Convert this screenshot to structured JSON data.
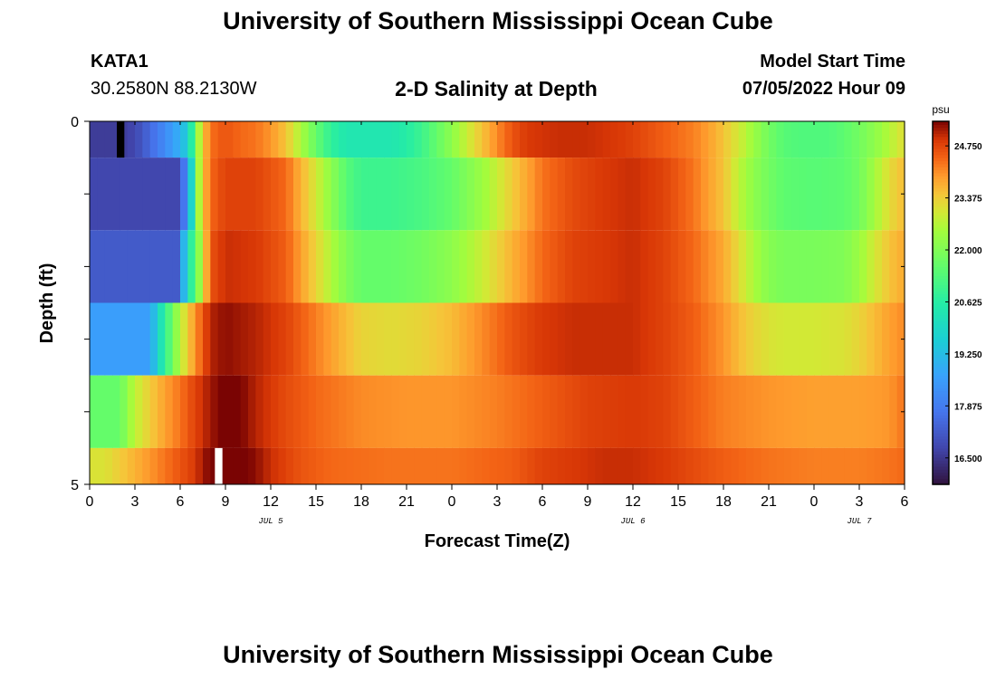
{
  "header": {
    "title": "University of Southern Mississippi Ocean Cube",
    "station_id": "KATA1",
    "coordinates": "30.2580N  88.2130W",
    "plot_title": "2-D Salinity at Depth",
    "model_start_label": "Model Start Time",
    "model_start_value": "07/05/2022 Hour 09"
  },
  "footer": {
    "title": "University of Southern Mississippi Ocean Cube"
  },
  "colors": {
    "background": "#ffffff",
    "missing_black": "#000000",
    "missing_white": "#ffffff"
  },
  "chart_data": {
    "type": "heatmap",
    "title": "2-D Salinity at Depth",
    "xlabel": "Forecast Time(Z)",
    "ylabel": "Depth (ft)",
    "x_range": [
      0,
      54
    ],
    "y_range": [
      0,
      5
    ],
    "x_tick_values": [
      0,
      3,
      6,
      9,
      12,
      15,
      18,
      21,
      24,
      27,
      30,
      33,
      36,
      39,
      42,
      45,
      48,
      51,
      54
    ],
    "x_tick_labels": [
      "0",
      "3",
      "6",
      "9",
      "12",
      "15",
      "18",
      "21",
      "0",
      "3",
      "6",
      "9",
      "12",
      "15",
      "18",
      "21",
      "0",
      "3",
      "6"
    ],
    "y_tick_values": [
      0,
      5
    ],
    "y_tick_labels": [
      "0",
      "5"
    ],
    "date_labels": [
      {
        "hour": 12,
        "label": "JUL 5"
      },
      {
        "hour": 36,
        "label": "JUL 6"
      },
      {
        "hour": 51,
        "label": "JUL 7"
      }
    ],
    "colorbar": {
      "unit": "psu",
      "min": 15.8,
      "max": 25.4,
      "ticks": [
        16.5,
        17.875,
        19.25,
        20.625,
        22.0,
        23.375,
        24.75
      ],
      "tick_labels": [
        "16.500",
        "17.875",
        "19.250",
        "20.625",
        "22.000",
        "23.375",
        "24.750"
      ]
    },
    "layer_depths": [
      [
        0,
        0.5
      ],
      [
        0.5,
        1.5
      ],
      [
        1.5,
        2.5
      ],
      [
        2.5,
        3.5
      ],
      [
        3.5,
        4.5
      ],
      [
        4.5,
        5.0
      ]
    ],
    "column_step_hours": 0.5,
    "missing_cells": [
      {
        "layer": 0,
        "hour_start": 1.8,
        "hour_end": 2.3,
        "color": "black"
      },
      {
        "layer": 5,
        "hour_start": 8.3,
        "hour_end": 8.8,
        "color": "white"
      }
    ],
    "layer_profiles": [
      {
        "name": "0-0.5 ft",
        "hours": [
          0,
          1,
          2,
          3,
          4,
          5,
          6,
          6.6,
          7,
          7.6,
          8,
          8.5,
          9,
          10,
          11,
          12,
          13,
          14,
          15,
          16,
          17,
          18,
          20,
          21,
          22,
          23,
          24,
          25,
          26,
          27,
          28,
          29,
          31,
          33,
          35,
          36,
          38,
          40,
          41,
          42,
          43,
          44,
          45,
          46,
          47,
          48,
          49,
          50,
          51,
          52,
          53,
          54
        ],
        "values": [
          16.6,
          16.6,
          16.6,
          16.8,
          17.5,
          18.2,
          19.0,
          19.8,
          22.0,
          23.6,
          24.3,
          24.5,
          24.6,
          24.4,
          24.3,
          24.0,
          23.5,
          22.6,
          21.6,
          20.8,
          20.4,
          20.4,
          20.4,
          20.6,
          21.0,
          21.6,
          22.2,
          22.9,
          23.5,
          24.1,
          24.6,
          24.9,
          25.0,
          25.0,
          24.9,
          24.8,
          24.5,
          24.2,
          23.9,
          23.5,
          23.0,
          22.4,
          21.8,
          21.4,
          21.3,
          21.3,
          21.3,
          21.5,
          21.8,
          22.2,
          22.7,
          23.2
        ]
      },
      {
        "name": "0.5-1.5 ft",
        "hours": [
          0,
          6,
          6.7,
          7.2,
          7.6,
          8,
          9,
          11,
          13,
          15,
          17,
          18,
          20,
          22,
          24,
          26,
          28,
          30,
          32,
          34,
          36,
          38,
          40,
          42,
          43,
          44,
          45,
          46,
          48,
          50,
          51,
          52,
          53,
          54
        ],
        "values": [
          16.8,
          16.8,
          19.5,
          22.5,
          23.6,
          24.4,
          24.8,
          24.8,
          24.4,
          23.0,
          21.4,
          21.0,
          21.0,
          21.2,
          21.6,
          22.4,
          23.4,
          24.3,
          24.7,
          24.9,
          25.0,
          24.8,
          24.3,
          23.5,
          22.8,
          22.2,
          21.8,
          21.5,
          21.4,
          21.5,
          21.8,
          22.5,
          23.2,
          23.6
        ]
      },
      {
        "name": "1.5-2.5 ft",
        "hours": [
          0,
          6,
          6.3,
          7,
          7.5,
          8,
          9,
          11,
          13,
          15,
          17,
          18,
          20,
          22,
          24,
          26,
          28,
          30,
          32,
          34,
          36,
          38,
          40,
          42,
          43,
          44,
          45,
          46,
          48,
          50,
          51,
          52,
          53,
          54
        ],
        "values": [
          17.2,
          17.2,
          19.5,
          21.5,
          23.0,
          24.6,
          25.0,
          24.9,
          24.5,
          23.3,
          22.0,
          21.6,
          21.6,
          21.8,
          22.2,
          22.9,
          23.7,
          24.4,
          24.8,
          24.9,
          25.0,
          24.8,
          24.4,
          23.8,
          23.2,
          22.6,
          22.1,
          21.9,
          21.9,
          22.0,
          22.4,
          23.0,
          23.5,
          23.8
        ]
      },
      {
        "name": "2.5-3.5 ft",
        "hours": [
          0,
          4,
          4.5,
          5,
          5.5,
          6,
          6.5,
          7,
          7.5,
          8,
          9,
          11,
          13,
          15,
          17,
          18,
          20,
          22,
          24,
          26,
          28,
          30,
          32,
          34,
          36,
          38,
          40,
          42,
          43,
          44,
          45,
          46,
          48,
          50,
          51,
          52,
          53,
          54
        ],
        "values": [
          18.6,
          18.6,
          19.8,
          20.8,
          21.8,
          22.7,
          23.4,
          24.0,
          24.6,
          25.1,
          25.3,
          25.1,
          24.8,
          24.2,
          23.6,
          23.3,
          23.2,
          23.3,
          23.6,
          24.1,
          24.6,
          24.9,
          25.0,
          25.0,
          25.0,
          24.8,
          24.5,
          24.0,
          23.6,
          23.3,
          23.1,
          23.0,
          23.0,
          23.1,
          23.3,
          23.6,
          23.9,
          24.1
        ]
      },
      {
        "name": "3.5-4.5 ft",
        "hours": [
          0,
          2,
          2.5,
          3,
          4,
          5,
          6,
          7,
          8,
          9,
          10,
          11,
          12,
          13,
          15,
          18,
          21,
          24,
          27,
          30,
          33,
          36,
          38,
          40,
          42,
          45,
          48,
          51,
          53,
          54
        ],
        "values": [
          21.6,
          21.6,
          22.3,
          22.8,
          23.4,
          23.9,
          24.3,
          24.8,
          25.2,
          25.5,
          25.4,
          25.1,
          24.9,
          24.7,
          24.4,
          24.1,
          24.0,
          24.0,
          24.2,
          24.5,
          24.8,
          24.9,
          24.8,
          24.5,
          24.2,
          24.0,
          23.9,
          23.9,
          24.0,
          24.3
        ]
      },
      {
        "name": "4.5-5 ft",
        "hours": [
          0,
          1,
          2,
          3,
          4,
          5,
          6,
          7,
          7.5,
          8,
          8.3,
          9,
          10,
          11,
          12,
          13,
          14,
          16,
          20,
          24,
          28,
          30,
          32,
          34,
          36,
          38,
          40,
          42,
          45,
          48,
          51,
          53,
          54
        ],
        "values": [
          23.1,
          23.1,
          23.4,
          23.7,
          24.0,
          24.3,
          24.6,
          24.9,
          25.2,
          25.4,
          25.6,
          25.7,
          25.5,
          25.3,
          25.0,
          24.8,
          24.6,
          24.4,
          24.3,
          24.3,
          24.5,
          24.8,
          24.9,
          25.0,
          25.0,
          24.9,
          24.7,
          24.5,
          24.3,
          24.2,
          24.2,
          24.3,
          24.4
        ]
      }
    ]
  }
}
